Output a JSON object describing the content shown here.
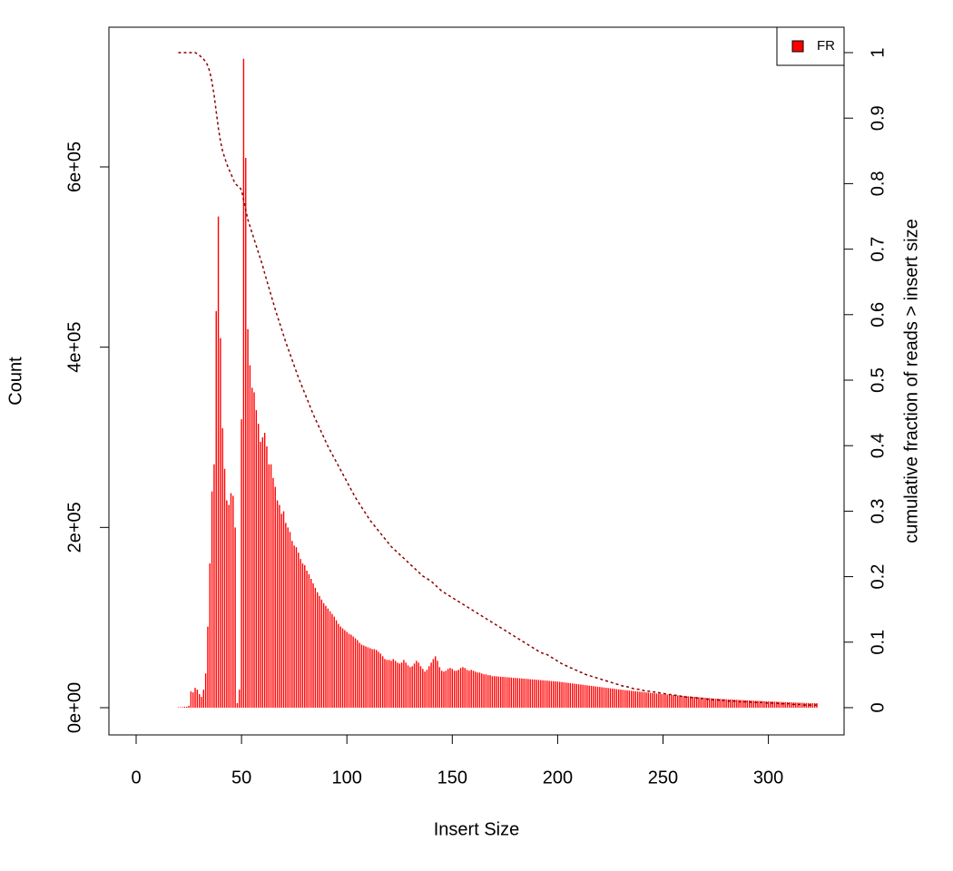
{
  "chart_data": {
    "type": "bar",
    "x_label": "Insert Size",
    "y_label": "Count",
    "y2_label": "cumulative fraction of reads > insert size",
    "legend": "topright",
    "xlim": [
      -12.92,
      335.92
    ],
    "xticks": [
      0,
      50,
      100,
      150,
      200,
      250,
      300
    ],
    "ylim": [
      -30200,
      755000
    ],
    "yticks": [
      {
        "value": 0,
        "label": "0e+00"
      },
      {
        "value": 200000,
        "label": "2e+05"
      },
      {
        "value": 400000,
        "label": "4e+05"
      },
      {
        "value": 600000,
        "label": "6e+05"
      }
    ],
    "y2lim": [
      -0.0416,
      1.0388
    ],
    "y2ticks": [
      0,
      0.1,
      0.2,
      0.3,
      0.4,
      0.5,
      0.6,
      0.7,
      0.8,
      0.9,
      1
    ],
    "x": [
      20,
      21,
      22,
      23,
      24,
      25,
      26,
      27,
      28,
      29,
      30,
      31,
      32,
      33,
      34,
      35,
      36,
      37,
      38,
      39,
      40,
      41,
      42,
      43,
      44,
      45,
      46,
      47,
      48,
      49,
      50,
      51,
      52,
      53,
      54,
      55,
      56,
      57,
      58,
      59,
      60,
      61,
      62,
      63,
      64,
      65,
      66,
      67,
      68,
      69,
      70,
      71,
      72,
      73,
      74,
      75,
      76,
      77,
      78,
      79,
      80,
      81,
      82,
      83,
      84,
      85,
      86,
      87,
      88,
      89,
      90,
      91,
      92,
      93,
      94,
      95,
      96,
      97,
      98,
      99,
      100,
      101,
      102,
      103,
      104,
      105,
      106,
      107,
      108,
      109,
      110,
      111,
      112,
      113,
      114,
      115,
      116,
      117,
      118,
      119,
      120,
      121,
      122,
      123,
      124,
      125,
      126,
      127,
      128,
      129,
      130,
      131,
      132,
      133,
      134,
      135,
      136,
      137,
      138,
      139,
      140,
      141,
      142,
      143,
      144,
      145,
      146,
      147,
      148,
      149,
      150,
      151,
      152,
      153,
      154,
      155,
      156,
      157,
      158,
      159,
      160,
      161,
      162,
      163,
      164,
      165,
      166,
      167,
      168,
      169,
      170,
      171,
      172,
      173,
      174,
      175,
      176,
      177,
      178,
      179,
      180,
      181,
      182,
      183,
      184,
      185,
      186,
      187,
      188,
      189,
      190,
      191,
      192,
      193,
      194,
      195,
      196,
      197,
      198,
      199,
      200,
      201,
      202,
      203,
      204,
      205,
      206,
      207,
      208,
      209,
      210,
      211,
      212,
      213,
      214,
      215,
      216,
      217,
      218,
      219,
      220,
      221,
      222,
      223,
      224,
      225,
      226,
      227,
      228,
      229,
      230,
      231,
      232,
      233,
      234,
      235,
      236,
      237,
      238,
      239,
      240,
      241,
      242,
      243,
      244,
      245,
      246,
      247,
      248,
      249,
      250,
      251,
      252,
      253,
      254,
      255,
      256,
      257,
      258,
      259,
      260,
      261,
      262,
      263,
      264,
      265,
      266,
      267,
      268,
      269,
      270,
      271,
      272,
      273,
      274,
      275,
      276,
      277,
      278,
      279,
      280,
      281,
      282,
      283,
      284,
      285,
      286,
      287,
      288,
      289,
      290,
      291,
      292,
      293,
      294,
      295,
      296,
      297,
      298,
      299,
      300,
      301,
      302,
      303,
      304,
      305,
      306,
      307,
      308,
      309,
      310,
      311,
      312,
      313,
      314,
      315,
      316,
      317,
      318,
      319,
      320,
      321,
      322,
      323
    ],
    "series": [
      {
        "name": "FR",
        "color": "#ff0000",
        "values": [
          500,
          500,
          500,
          1000,
          1000,
          2000,
          18000,
          17000,
          22000,
          20000,
          15000,
          12000,
          20000,
          38000,
          90000,
          160000,
          240000,
          270000,
          440000,
          545000,
          410000,
          310000,
          265000,
          230000,
          225000,
          238000,
          235000,
          200000,
          5000,
          20000,
          320000,
          720000,
          610000,
          420000,
          380000,
          355000,
          350000,
          330000,
          315000,
          295000,
          300000,
          305000,
          290000,
          270000,
          270000,
          255000,
          245000,
          230000,
          225000,
          215000,
          218000,
          205000,
          200000,
          195000,
          185000,
          180000,
          178000,
          172000,
          165000,
          160000,
          158000,
          152000,
          148000,
          143000,
          138000,
          133000,
          128000,
          124000,
          120000,
          116000,
          113000,
          110000,
          107000,
          104000,
          101000,
          97000,
          93000,
          90000,
          88000,
          86000,
          84000,
          82000,
          81000,
          79000,
          77000,
          75000,
          72000,
          70000,
          69000,
          68000,
          67000,
          66000,
          65000,
          65000,
          64000,
          62000,
          60000,
          57000,
          54000,
          53000,
          53000,
          52000,
          54000,
          52000,
          50000,
          49000,
          50000,
          53000,
          50000,
          47000,
          45000,
          46000,
          49000,
          52000,
          50000,
          46000,
          43000,
          40000,
          42000,
          46000,
          50000,
          54000,
          57000,
          52000,
          45000,
          41000,
          40000,
          41000,
          43000,
          44000,
          43000,
          41000,
          41000,
          42000,
          44000,
          45000,
          44000,
          42000,
          41000,
          42000,
          41000,
          40000,
          39000,
          39000,
          38000,
          37000,
          37000,
          36000,
          36000,
          35000,
          35000,
          34800,
          34600,
          34400,
          34200,
          34000,
          33800,
          33600,
          33400,
          33200,
          33000,
          32800,
          32600,
          32400,
          32200,
          32000,
          31800,
          31600,
          31400,
          31200,
          31000,
          30800,
          30600,
          30400,
          30200,
          30000,
          29800,
          29600,
          29400,
          29200,
          29000,
          28700,
          28400,
          28100,
          27800,
          27500,
          27200,
          26900,
          26600,
          26300,
          26000,
          25700,
          25400,
          25100,
          24800,
          24500,
          24200,
          23900,
          23600,
          23300,
          23000,
          22700,
          22400,
          22100,
          21800,
          21500,
          21200,
          20900,
          20600,
          20300,
          20000,
          19750,
          19500,
          19250,
          19000,
          18750,
          18500,
          18250,
          18000,
          17750,
          17500,
          17250,
          17000,
          16750,
          16500,
          16250,
          16000,
          15750,
          15500,
          15250,
          15000,
          14800,
          14600,
          14400,
          14200,
          14000,
          13800,
          13600,
          13400,
          13200,
          13000,
          12800,
          12600,
          12400,
          12200,
          12000,
          11800,
          11600,
          11400,
          11200,
          11000,
          10800,
          10600,
          10400,
          10200,
          10000,
          9880,
          9760,
          9640,
          9520,
          9400,
          9280,
          9160,
          9040,
          8920,
          8800,
          8680,
          8560,
          8440,
          8320,
          8200,
          8080,
          7960,
          7840,
          7720,
          7600,
          7480,
          7360,
          7240,
          7120,
          7000,
          6900,
          6800,
          6700,
          6600,
          6500,
          6400,
          6300,
          6200,
          6100,
          6000,
          5900,
          5800,
          5700,
          5600,
          5500,
          5400,
          5300,
          5200,
          5100,
          5000,
          5000,
          5000,
          5000
        ]
      },
      {
        "type": "line",
        "axis": "y2",
        "color": "#8b0000",
        "values": [
          1,
          1,
          1,
          1,
          1,
          1,
          1,
          1,
          1,
          0.998,
          0.996,
          0.993,
          0.99,
          0.986,
          0.98,
          0.97,
          0.955,
          0.935,
          0.91,
          0.885,
          0.865,
          0.85,
          0.84,
          0.83,
          0.822,
          0.815,
          0.807,
          0.8,
          0.797,
          0.795,
          0.79,
          0.775,
          0.76,
          0.745,
          0.735,
          0.725,
          0.715,
          0.705,
          0.695,
          0.685,
          0.675,
          0.663,
          0.652,
          0.641,
          0.63,
          0.619,
          0.608,
          0.598,
          0.588,
          0.578,
          0.568,
          0.558,
          0.549,
          0.54,
          0.531,
          0.522,
          0.513,
          0.504,
          0.496,
          0.488,
          0.48,
          0.472,
          0.464,
          0.456,
          0.448,
          0.441,
          0.434,
          0.427,
          0.42,
          0.413,
          0.406,
          0.399,
          0.393,
          0.387,
          0.381,
          0.375,
          0.369,
          0.363,
          0.357,
          0.351,
          0.345,
          0.339,
          0.333,
          0.327,
          0.321,
          0.316,
          0.311,
          0.306,
          0.301,
          0.296,
          0.291,
          0.286,
          0.282,
          0.278,
          0.274,
          0.27,
          0.266,
          0.262,
          0.258,
          0.254,
          0.25,
          0.246,
          0.243,
          0.24,
          0.237,
          0.234,
          0.231,
          0.228,
          0.225,
          0.222,
          0.219,
          0.216,
          0.213,
          0.21,
          0.207,
          0.204,
          0.201,
          0.199,
          0.197,
          0.195,
          0.193,
          0.19,
          0.187,
          0.184,
          0.181,
          0.178,
          0.176,
          0.174,
          0.172,
          0.17,
          0.168,
          0.166,
          0.164,
          0.162,
          0.16,
          0.158,
          0.156,
          0.154,
          0.152,
          0.15,
          0.148,
          0.146,
          0.144,
          0.142,
          0.14,
          0.138,
          0.136,
          0.134,
          0.132,
          0.13,
          0.128,
          0.126,
          0.124,
          0.122,
          0.12,
          0.118,
          0.116,
          0.114,
          0.112,
          0.11,
          0.108,
          0.106,
          0.104,
          0.102,
          0.1,
          0.098,
          0.096,
          0.094,
          0.092,
          0.09,
          0.088,
          0.086,
          0.084,
          0.083,
          0.082,
          0.081,
          0.079,
          0.077,
          0.075,
          0.073,
          0.071,
          0.069,
          0.067,
          0.066,
          0.064,
          0.063,
          0.061,
          0.06,
          0.058,
          0.057,
          0.055,
          0.054,
          0.053,
          0.051,
          0.05,
          0.049,
          0.048,
          0.047,
          0.046,
          0.045,
          0.044,
          0.043,
          0.042,
          0.041,
          0.04,
          0.039,
          0.038,
          0.037,
          0.036,
          0.035,
          0.034,
          0.033,
          0.032,
          0.032,
          0.031,
          0.03,
          0.029,
          0.029,
          0.028,
          0.028,
          0.027,
          0.026,
          0.026,
          0.025,
          0.025,
          0.024,
          0.024,
          0.023,
          0.023,
          0.022,
          0.022,
          0.021,
          0.021,
          0.02,
          0.02,
          0.019,
          0.019,
          0.018,
          0.018,
          0.017,
          0.017,
          0.016,
          0.016,
          0.016,
          0.015,
          0.015,
          0.015,
          0.014,
          0.014,
          0.014,
          0.013,
          0.013,
          0.013,
          0.012,
          0.012,
          0.012,
          0.012,
          0.011,
          0.011,
          0.011,
          0.011,
          0.01,
          0.01,
          0.01,
          0.01,
          0.01,
          0.009,
          0.009,
          0.009,
          0.009,
          0.009,
          0.009,
          0.008,
          0.008,
          0.008,
          0.008,
          0.008,
          0.008,
          0.008,
          0.007,
          0.007,
          0.007,
          0.007,
          0.007,
          0.007,
          0.006,
          0.006,
          0.006,
          0.006,
          0.006,
          0.006,
          0.005,
          0.005,
          0.005,
          0.005,
          0.005,
          0.005,
          0.004,
          0.004,
          0.004,
          0.004,
          0.004,
          0.004,
          0.004
        ]
      }
    ]
  }
}
